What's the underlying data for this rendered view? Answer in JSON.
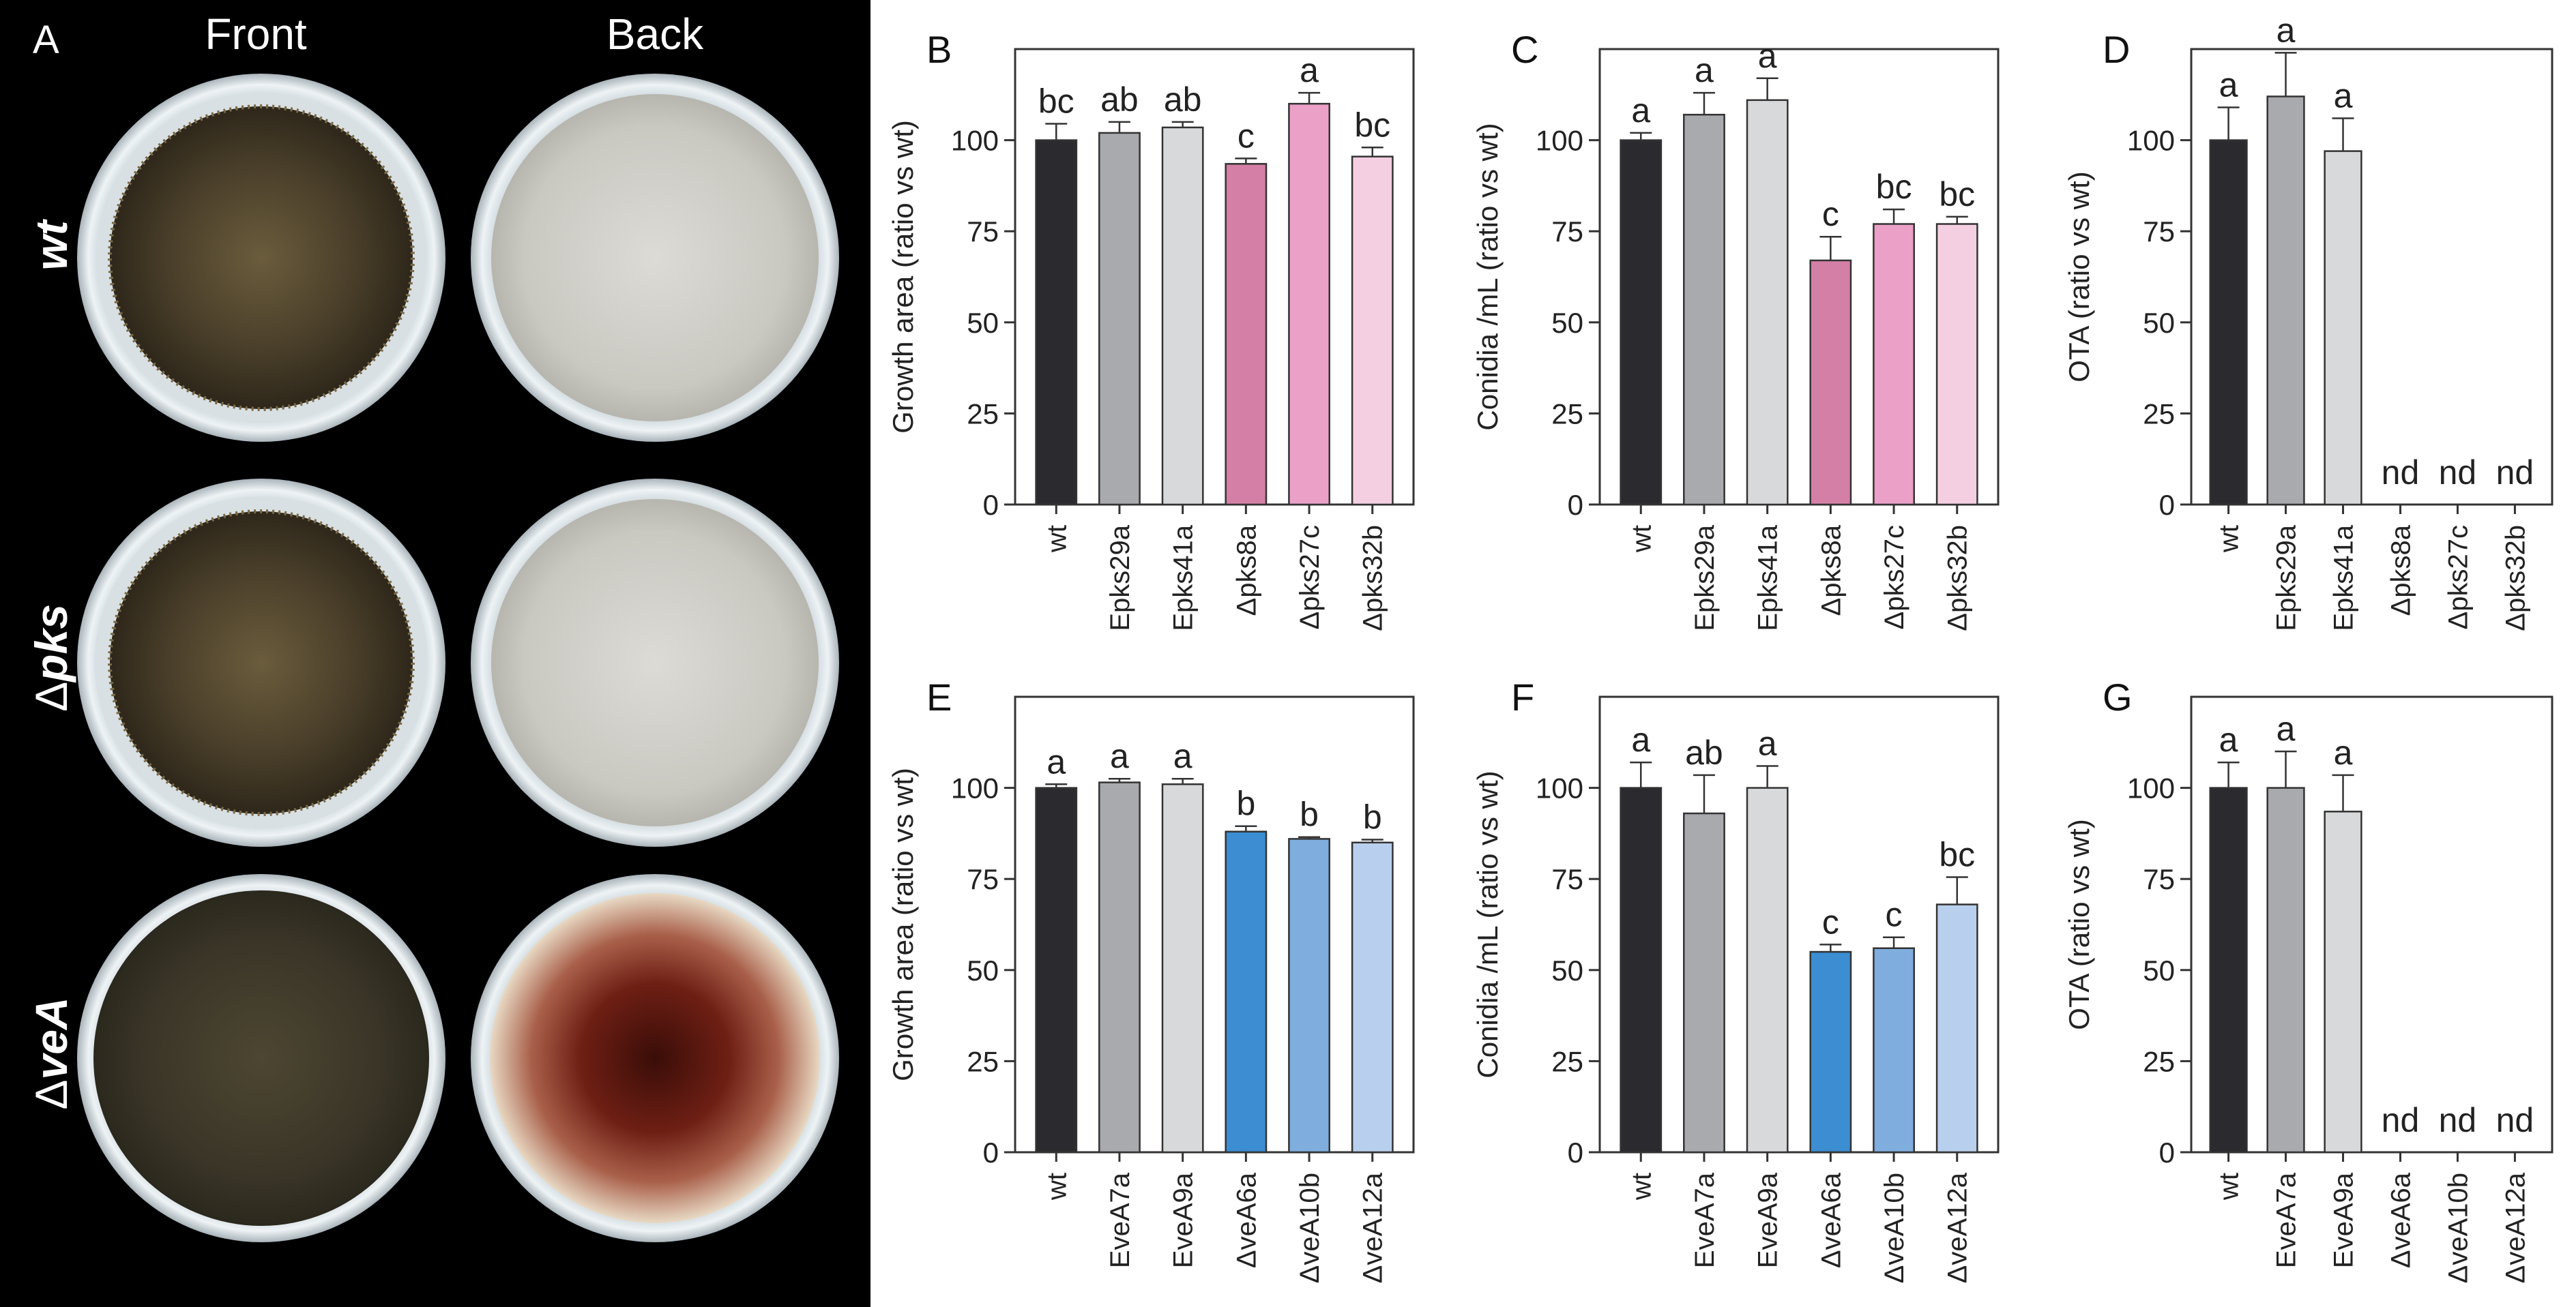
{
  "photo_panel": {
    "label": "A",
    "columns": [
      "Front",
      "Back"
    ],
    "rows": [
      {
        "prefix": "",
        "name": "wt"
      },
      {
        "prefix": "Δ",
        "name": "pks"
      },
      {
        "prefix": "Δ",
        "name": "veA"
      }
    ]
  },
  "chart_data": [
    {
      "label": "B",
      "type": "bar",
      "title": "",
      "xlabel": "",
      "ylabel": "Growth area (ratio vs wt)",
      "ylim": [
        0,
        125
      ],
      "yticks": [
        0,
        25,
        50,
        75,
        100
      ],
      "categories": [
        "wt",
        "Epks29a",
        "Epks41a",
        "Δpks8a",
        "Δpks27c",
        "Δpks32b"
      ],
      "values": [
        100,
        102,
        103.5,
        93.5,
        110,
        95.5
      ],
      "errors": [
        4.5,
        3,
        1.5,
        1.5,
        3,
        2.5
      ],
      "letters": [
        "bc",
        "ab",
        "ab",
        "c",
        "a",
        "bc"
      ],
      "colors": [
        "#2b2a2e",
        "#a9aaae",
        "#d8d9db",
        "#d47fa6",
        "#eba0c8",
        "#f4cfe2"
      ]
    },
    {
      "label": "C",
      "type": "bar",
      "title": "",
      "xlabel": "",
      "ylabel": "Conidia /mL (ratio vs wt)",
      "ylim": [
        0,
        125
      ],
      "yticks": [
        0,
        25,
        50,
        75,
        100
      ],
      "categories": [
        "wt",
        "Epks29a",
        "Epks41a",
        "Δpks8a",
        "Δpks27c",
        "Δpks32b"
      ],
      "values": [
        100,
        107,
        111,
        67,
        77,
        77
      ],
      "errors": [
        2,
        6,
        6,
        6.5,
        4,
        2
      ],
      "letters": [
        "a",
        "a",
        "a",
        "c",
        "bc",
        "bc"
      ],
      "colors": [
        "#2b2a2e",
        "#a9aaae",
        "#d8d9db",
        "#d47fa6",
        "#eba0c8",
        "#f4cfe2"
      ]
    },
    {
      "label": "D",
      "type": "bar",
      "title": "",
      "xlabel": "",
      "ylabel": "OTA (ratio vs wt)",
      "ylim": [
        0,
        125
      ],
      "yticks": [
        0,
        25,
        50,
        75,
        100
      ],
      "categories": [
        "wt",
        "Epks29a",
        "Epks41a",
        "Δpks8a",
        "Δpks27c",
        "Δpks32b"
      ],
      "values": [
        100,
        112,
        97,
        0,
        0,
        0
      ],
      "errors": [
        9,
        12,
        9,
        0,
        0,
        0
      ],
      "letters": [
        "a",
        "a",
        "a",
        "nd",
        "nd",
        "nd"
      ],
      "colors": [
        "#2b2a2e",
        "#a9aaae",
        "#d8d9db",
        "#d47fa6",
        "#eba0c8",
        "#f4cfe2"
      ]
    },
    {
      "label": "E",
      "type": "bar",
      "title": "",
      "xlabel": "",
      "ylabel": "Growth area (ratio vs wt)",
      "ylim": [
        0,
        125
      ],
      "yticks": [
        0,
        25,
        50,
        75,
        100
      ],
      "categories": [
        "wt",
        "EveA7a",
        "EveA9a",
        "ΔveA6a",
        "ΔveA10b",
        "ΔveA12a"
      ],
      "values": [
        100,
        101.5,
        101,
        88,
        86,
        85
      ],
      "errors": [
        1,
        1,
        1.5,
        1.5,
        0.5,
        0.8
      ],
      "letters": [
        "a",
        "a",
        "a",
        "b",
        "b",
        "b"
      ],
      "colors": [
        "#2b2a2e",
        "#a9aaae",
        "#d8d9db",
        "#3c8dd1",
        "#7fadde",
        "#b9cfee"
      ]
    },
    {
      "label": "F",
      "type": "bar",
      "title": "",
      "xlabel": "",
      "ylabel": "Conidia /mL (ratio vs wt)",
      "ylim": [
        0,
        125
      ],
      "yticks": [
        0,
        25,
        50,
        75,
        100
      ],
      "categories": [
        "wt",
        "EveA7a",
        "EveA9a",
        "ΔveA6a",
        "ΔveA10b",
        "ΔveA12a"
      ],
      "values": [
        100,
        93,
        100,
        55,
        56,
        68
      ],
      "errors": [
        7,
        10.5,
        6,
        2,
        3,
        7.5
      ],
      "letters": [
        "a",
        "ab",
        "a",
        "c",
        "c",
        "bc"
      ],
      "colors": [
        "#2b2a2e",
        "#a9aaae",
        "#d8d9db",
        "#3c8dd1",
        "#7fadde",
        "#b9cfee"
      ]
    },
    {
      "label": "G",
      "type": "bar",
      "title": "",
      "xlabel": "",
      "ylabel": "OTA (ratio vs wt)",
      "ylim": [
        0,
        125
      ],
      "yticks": [
        0,
        25,
        50,
        75,
        100
      ],
      "categories": [
        "wt",
        "EveA7a",
        "EveA9a",
        "ΔveA6a",
        "ΔveA10b",
        "ΔveA12a"
      ],
      "values": [
        100,
        100,
        93.5,
        0,
        0,
        0
      ],
      "errors": [
        7,
        10,
        10,
        0,
        0,
        0
      ],
      "letters": [
        "a",
        "a",
        "a",
        "nd",
        "nd",
        "nd"
      ],
      "colors": [
        "#2b2a2e",
        "#a9aaae",
        "#d8d9db",
        "#3c8dd1",
        "#7fadde",
        "#b9cfee"
      ]
    }
  ]
}
